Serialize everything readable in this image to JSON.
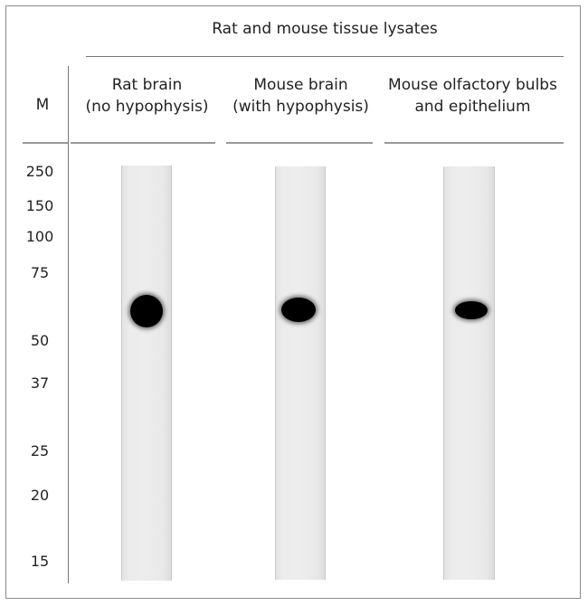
{
  "header": {
    "title": "Rat and mouse tissue lysates",
    "marker_column_label": "M"
  },
  "lanes": [
    {
      "line1": "Rat brain",
      "line2": "(no hypophysis)"
    },
    {
      "line1": "Mouse brain",
      "line2": "(with hypophysis)"
    },
    {
      "line1": "Mouse olfactory bulbs",
      "line2": "and epithelium"
    }
  ],
  "markers": [
    {
      "label": "250",
      "kda": 250
    },
    {
      "label": "150",
      "kda": 150
    },
    {
      "label": "100",
      "kda": 100
    },
    {
      "label": "75",
      "kda": 75
    },
    {
      "label": "50",
      "kda": 50
    },
    {
      "label": "37",
      "kda": 37
    },
    {
      "label": "25",
      "kda": 25
    },
    {
      "label": "20",
      "kda": 20
    },
    {
      "label": "15",
      "kda": 15
    }
  ]
}
